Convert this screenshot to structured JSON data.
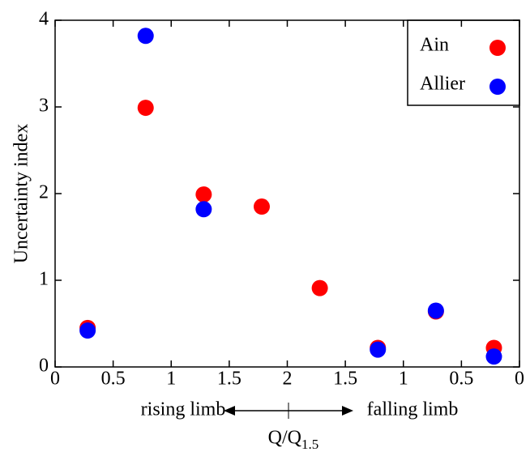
{
  "chart_data": {
    "type": "scatter",
    "ylabel": "Uncertainty index",
    "xlabel": [
      "Q/Q",
      "1.5"
    ],
    "annotations": [
      "rising limb",
      "falling limb"
    ],
    "xlim": [
      0,
      4
    ],
    "ylim": [
      0,
      4
    ],
    "xticks": [
      0,
      0.5,
      1,
      1.5,
      2,
      {
        "value": 2.5,
        "label": "1.5"
      },
      {
        "value": 3,
        "label": "1"
      },
      {
        "value": 3.5,
        "label": "0.5"
      },
      {
        "value": 4,
        "label": "0"
      }
    ],
    "yticks": [
      0,
      1,
      2,
      3,
      4
    ],
    "x": [
      0.28,
      0.78,
      1.28,
      1.78,
      2.28,
      2.78,
      3.28,
      3.78
    ],
    "series": [
      {
        "name": "Ain",
        "color": "#ff0000",
        "values": [
          0.45,
          2.99,
          1.99,
          1.85,
          0.91,
          0.22,
          0.64,
          0.22
        ]
      },
      {
        "name": "Allier",
        "color": "#0000ff",
        "values": [
          0.42,
          3.82,
          1.82,
          null,
          null,
          0.2,
          0.65,
          0.12
        ]
      }
    ]
  }
}
